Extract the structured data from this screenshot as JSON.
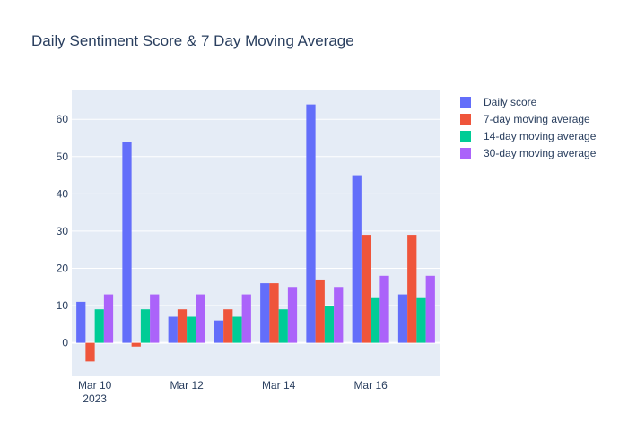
{
  "chart_data": {
    "type": "bar",
    "title": "Daily Sentiment Score & 7 Day Moving Average",
    "xlabel": "",
    "ylabel": "",
    "x": [
      "2023-03-10",
      "2023-03-11",
      "2023-03-12",
      "2023-03-13",
      "2023-03-14",
      "2023-03-15",
      "2023-03-16",
      "2023-03-17"
    ],
    "x_ticks": [
      {
        "date": "2023-03-10",
        "label": "Mar 10",
        "sublabel": "2023"
      },
      {
        "date": "2023-03-12",
        "label": "Mar 12",
        "sublabel": ""
      },
      {
        "date": "2023-03-14",
        "label": "Mar 14",
        "sublabel": ""
      },
      {
        "date": "2023-03-16",
        "label": "Mar 16",
        "sublabel": ""
      }
    ],
    "y_ticks": [
      0,
      10,
      20,
      30,
      40,
      50,
      60
    ],
    "ylim": [
      -9,
      68
    ],
    "grid": true,
    "legend_position": "top-right",
    "series": [
      {
        "name": "Daily score",
        "color": "#636efa",
        "values": [
          11,
          54,
          7,
          6,
          16,
          64,
          45,
          13
        ]
      },
      {
        "name": "7-day moving average",
        "color": "#ef553b",
        "values": [
          -5,
          -1,
          9,
          9,
          16,
          17,
          29,
          29
        ]
      },
      {
        "name": "14-day moving average",
        "color": "#00cc96",
        "values": [
          9,
          9,
          7,
          7,
          9,
          10,
          12,
          12
        ]
      },
      {
        "name": "30-day moving average",
        "color": "#ab63fa",
        "values": [
          13,
          13,
          13,
          13,
          15,
          15,
          18,
          18
        ]
      }
    ],
    "colors": {
      "plot_bg": "#e5ecf6",
      "grid": "#ffffff",
      "text": "#2a3f5f"
    }
  }
}
